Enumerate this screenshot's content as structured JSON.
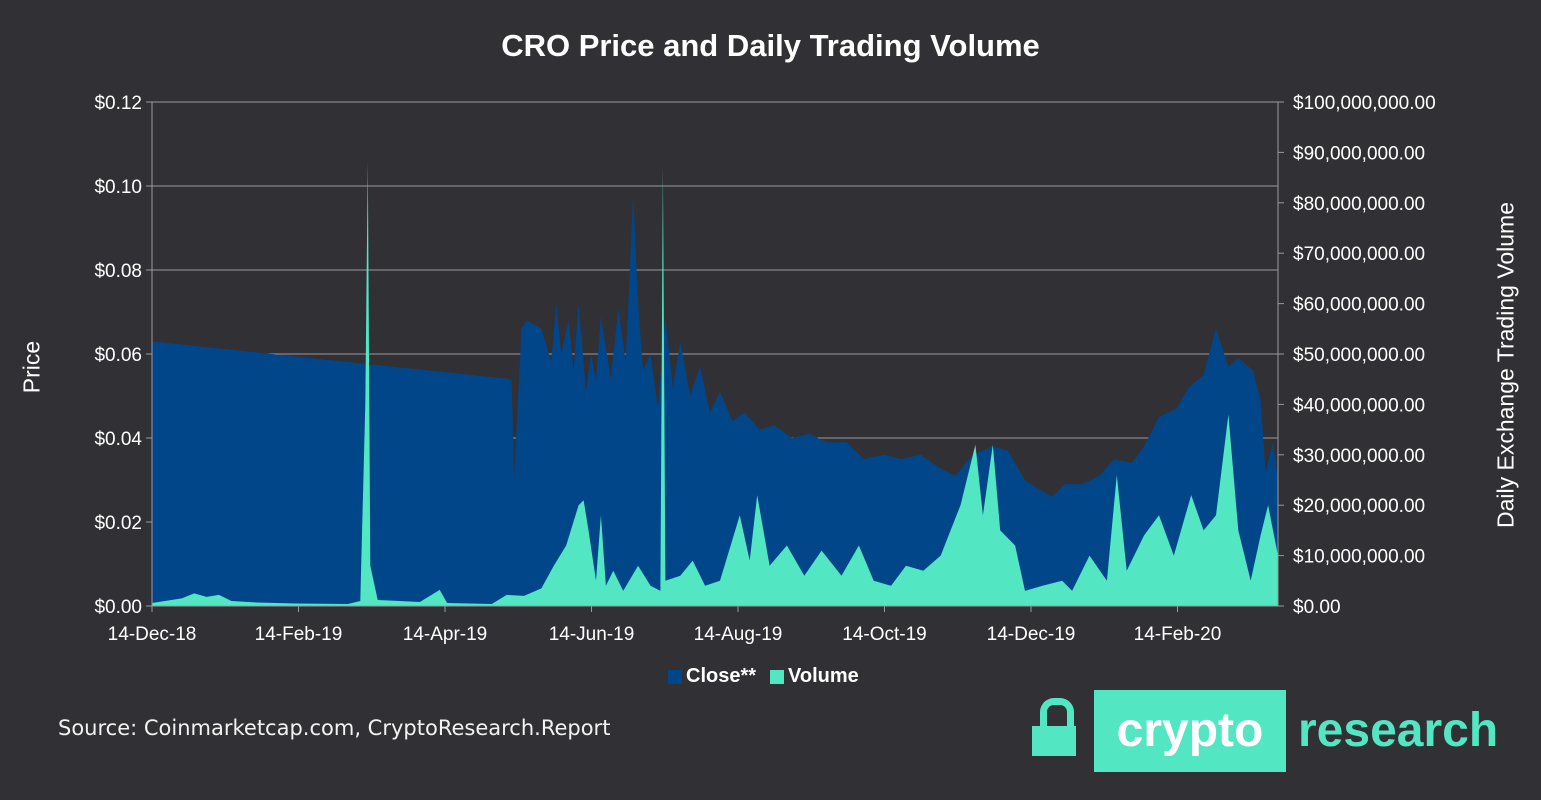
{
  "chart_data": {
    "type": "area",
    "title": "CRO Price and Daily Trading Volume",
    "ylabel_left": "Price",
    "ylabel_right": "Daily Exchange Trading Volume",
    "x_tick_labels": [
      "14-Dec-18",
      "14-Feb-19",
      "14-Apr-19",
      "14-Jun-19",
      "14-Aug-19",
      "14-Oct-19",
      "14-Dec-19",
      "14-Feb-20"
    ],
    "y_left_ticks": [
      "$0.00",
      "$0.02",
      "$0.04",
      "$0.06",
      "$0.08",
      "$0.10",
      "$0.12"
    ],
    "y_right_ticks": [
      "$0.00",
      "$10,000,000.00",
      "$20,000,000.00",
      "$30,000,000.00",
      "$40,000,000.00",
      "$50,000,000.00",
      "$60,000,000.00",
      "$70,000,000.00",
      "$80,000,000.00",
      "$90,000,000.00",
      "$100,000,000.00"
    ],
    "ylim_left": [
      0,
      0.12
    ],
    "ylim_right": [
      0,
      100000000
    ],
    "xlim": [
      "2018-12-14",
      "2020-03-12"
    ],
    "grid": "horizontal",
    "legend_position": "bottom",
    "series": [
      {
        "name": "Close**",
        "axis": "left",
        "color": "#02468a",
        "points": [
          [
            "2018-12-14",
            0.063
          ],
          [
            "2019-05-08",
            0.054
          ],
          [
            "2019-05-09",
            0.031
          ],
          [
            "2019-05-10",
            0.042
          ],
          [
            "2019-05-12",
            0.066
          ],
          [
            "2019-05-14",
            0.068
          ],
          [
            "2019-05-20",
            0.066
          ],
          [
            "2019-05-24",
            0.058
          ],
          [
            "2019-05-26",
            0.072
          ],
          [
            "2019-05-28",
            0.06
          ],
          [
            "2019-05-31",
            0.068
          ],
          [
            "2019-06-02",
            0.056
          ],
          [
            "2019-06-04",
            0.072
          ],
          [
            "2019-06-07",
            0.051
          ],
          [
            "2019-06-09",
            0.06
          ],
          [
            "2019-06-11",
            0.054
          ],
          [
            "2019-06-13",
            0.069
          ],
          [
            "2019-06-17",
            0.054
          ],
          [
            "2019-06-20",
            0.071
          ],
          [
            "2019-06-23",
            0.058
          ],
          [
            "2019-06-26",
            0.098
          ],
          [
            "2019-06-28",
            0.072
          ],
          [
            "2019-06-30",
            0.056
          ],
          [
            "2019-07-03",
            0.06
          ],
          [
            "2019-07-06",
            0.047
          ],
          [
            "2019-07-09",
            0.069
          ],
          [
            "2019-07-12",
            0.052
          ],
          [
            "2019-07-15",
            0.063
          ],
          [
            "2019-07-19",
            0.05
          ],
          [
            "2019-07-23",
            0.057
          ],
          [
            "2019-07-27",
            0.046
          ],
          [
            "2019-07-31",
            0.051
          ],
          [
            "2019-08-05",
            0.044
          ],
          [
            "2019-08-10",
            0.046
          ],
          [
            "2019-08-16",
            0.042
          ],
          [
            "2019-08-22",
            0.043
          ],
          [
            "2019-08-29",
            0.04
          ],
          [
            "2019-09-05",
            0.041
          ],
          [
            "2019-09-12",
            0.039
          ],
          [
            "2019-09-20",
            0.039
          ],
          [
            "2019-09-27",
            0.035
          ],
          [
            "2019-10-05",
            0.036
          ],
          [
            "2019-10-12",
            0.035
          ],
          [
            "2019-10-20",
            0.036
          ],
          [
            "2019-10-27",
            0.033
          ],
          [
            "2019-11-03",
            0.031
          ],
          [
            "2019-11-10",
            0.036
          ],
          [
            "2019-11-18",
            0.038
          ],
          [
            "2019-11-24",
            0.037
          ],
          [
            "2019-12-01",
            0.03
          ],
          [
            "2019-12-06",
            0.028
          ],
          [
            "2019-12-12",
            0.026
          ],
          [
            "2019-12-17",
            0.029
          ],
          [
            "2019-12-24",
            0.029
          ],
          [
            "2019-12-31",
            0.031
          ],
          [
            "2020-01-06",
            0.035
          ],
          [
            "2020-01-13",
            0.034
          ],
          [
            "2020-01-18",
            0.038
          ],
          [
            "2020-01-24",
            0.045
          ],
          [
            "2020-01-31",
            0.047
          ],
          [
            "2020-02-05",
            0.052
          ],
          [
            "2020-02-11",
            0.055
          ],
          [
            "2020-02-16",
            0.066
          ],
          [
            "2020-02-21",
            0.057
          ],
          [
            "2020-02-25",
            0.059
          ],
          [
            "2020-03-02",
            0.056
          ],
          [
            "2020-03-05",
            0.049
          ],
          [
            "2020-03-07",
            0.032
          ],
          [
            "2020-03-10",
            0.039
          ],
          [
            "2020-03-12",
            0.03
          ]
        ]
      },
      {
        "name": "Volume",
        "axis": "right",
        "color": "#52e6c2",
        "points": [
          [
            "2018-12-14",
            600000
          ],
          [
            "2018-12-26",
            1500000
          ],
          [
            "2018-12-31",
            2500000
          ],
          [
            "2019-01-05",
            1800000
          ],
          [
            "2019-01-10",
            2200000
          ],
          [
            "2019-01-15",
            1000000
          ],
          [
            "2019-01-25",
            700000
          ],
          [
            "2019-02-10",
            500000
          ],
          [
            "2019-03-03",
            400000
          ],
          [
            "2019-03-08",
            1000000
          ],
          [
            "2019-03-10",
            40000000
          ],
          [
            "2019-03-11",
            88000000
          ],
          [
            "2019-03-12",
            8000000
          ],
          [
            "2019-03-15",
            1200000
          ],
          [
            "2019-04-01",
            800000
          ],
          [
            "2019-04-09",
            3200000
          ],
          [
            "2019-04-12",
            600000
          ],
          [
            "2019-04-30",
            400000
          ],
          [
            "2019-05-06",
            2200000
          ],
          [
            "2019-05-13",
            2000000
          ],
          [
            "2019-05-20",
            3500000
          ],
          [
            "2019-05-25",
            8000000
          ],
          [
            "2019-05-30",
            12000000
          ],
          [
            "2019-06-04",
            20000000
          ],
          [
            "2019-06-06",
            21000000
          ],
          [
            "2019-06-08",
            15000000
          ],
          [
            "2019-06-11",
            5000000
          ],
          [
            "2019-06-13",
            18000000
          ],
          [
            "2019-06-15",
            4000000
          ],
          [
            "2019-06-18",
            7000000
          ],
          [
            "2019-06-22",
            3000000
          ],
          [
            "2019-06-28",
            8000000
          ],
          [
            "2019-07-03",
            4000000
          ],
          [
            "2019-07-07",
            3000000
          ],
          [
            "2019-07-08",
            87000000
          ],
          [
            "2019-07-09",
            5000000
          ],
          [
            "2019-07-15",
            6000000
          ],
          [
            "2019-07-20",
            9000000
          ],
          [
            "2019-07-25",
            4000000
          ],
          [
            "2019-07-31",
            5000000
          ],
          [
            "2019-08-08",
            18000000
          ],
          [
            "2019-08-12",
            9000000
          ],
          [
            "2019-08-15",
            22000000
          ],
          [
            "2019-08-20",
            8000000
          ],
          [
            "2019-08-27",
            12000000
          ],
          [
            "2019-09-03",
            6000000
          ],
          [
            "2019-09-10",
            11000000
          ],
          [
            "2019-09-18",
            6000000
          ],
          [
            "2019-09-25",
            12000000
          ],
          [
            "2019-10-01",
            5000000
          ],
          [
            "2019-10-08",
            4000000
          ],
          [
            "2019-10-14",
            8000000
          ],
          [
            "2019-10-21",
            7000000
          ],
          [
            "2019-10-28",
            10000000
          ],
          [
            "2019-11-05",
            20000000
          ],
          [
            "2019-11-11",
            32000000
          ],
          [
            "2019-11-14",
            18000000
          ],
          [
            "2019-11-18",
            32000000
          ],
          [
            "2019-11-21",
            15000000
          ],
          [
            "2019-11-27",
            12000000
          ],
          [
            "2019-12-01",
            3000000
          ],
          [
            "2019-12-08",
            4000000
          ],
          [
            "2019-12-16",
            5000000
          ],
          [
            "2019-12-20",
            3000000
          ],
          [
            "2019-12-27",
            10000000
          ],
          [
            "2020-01-03",
            5000000
          ],
          [
            "2020-01-07",
            26000000
          ],
          [
            "2020-01-11",
            7000000
          ],
          [
            "2020-01-18",
            14000000
          ],
          [
            "2020-01-24",
            18000000
          ],
          [
            "2020-01-30",
            10000000
          ],
          [
            "2020-02-06",
            22000000
          ],
          [
            "2020-02-11",
            15000000
          ],
          [
            "2020-02-16",
            18000000
          ],
          [
            "2020-02-21",
            38000000
          ],
          [
            "2020-02-25",
            15000000
          ],
          [
            "2020-03-01",
            5000000
          ],
          [
            "2020-03-05",
            14000000
          ],
          [
            "2020-03-08",
            20000000
          ],
          [
            "2020-03-10",
            15000000
          ],
          [
            "2020-03-12",
            10000000
          ]
        ]
      }
    ]
  },
  "source_text": "Source: Coinmarketcap.com, CryptoResearch.Report",
  "logo": {
    "box_text": "crypto",
    "word_text": "research",
    "icon": "padlock-icon"
  }
}
